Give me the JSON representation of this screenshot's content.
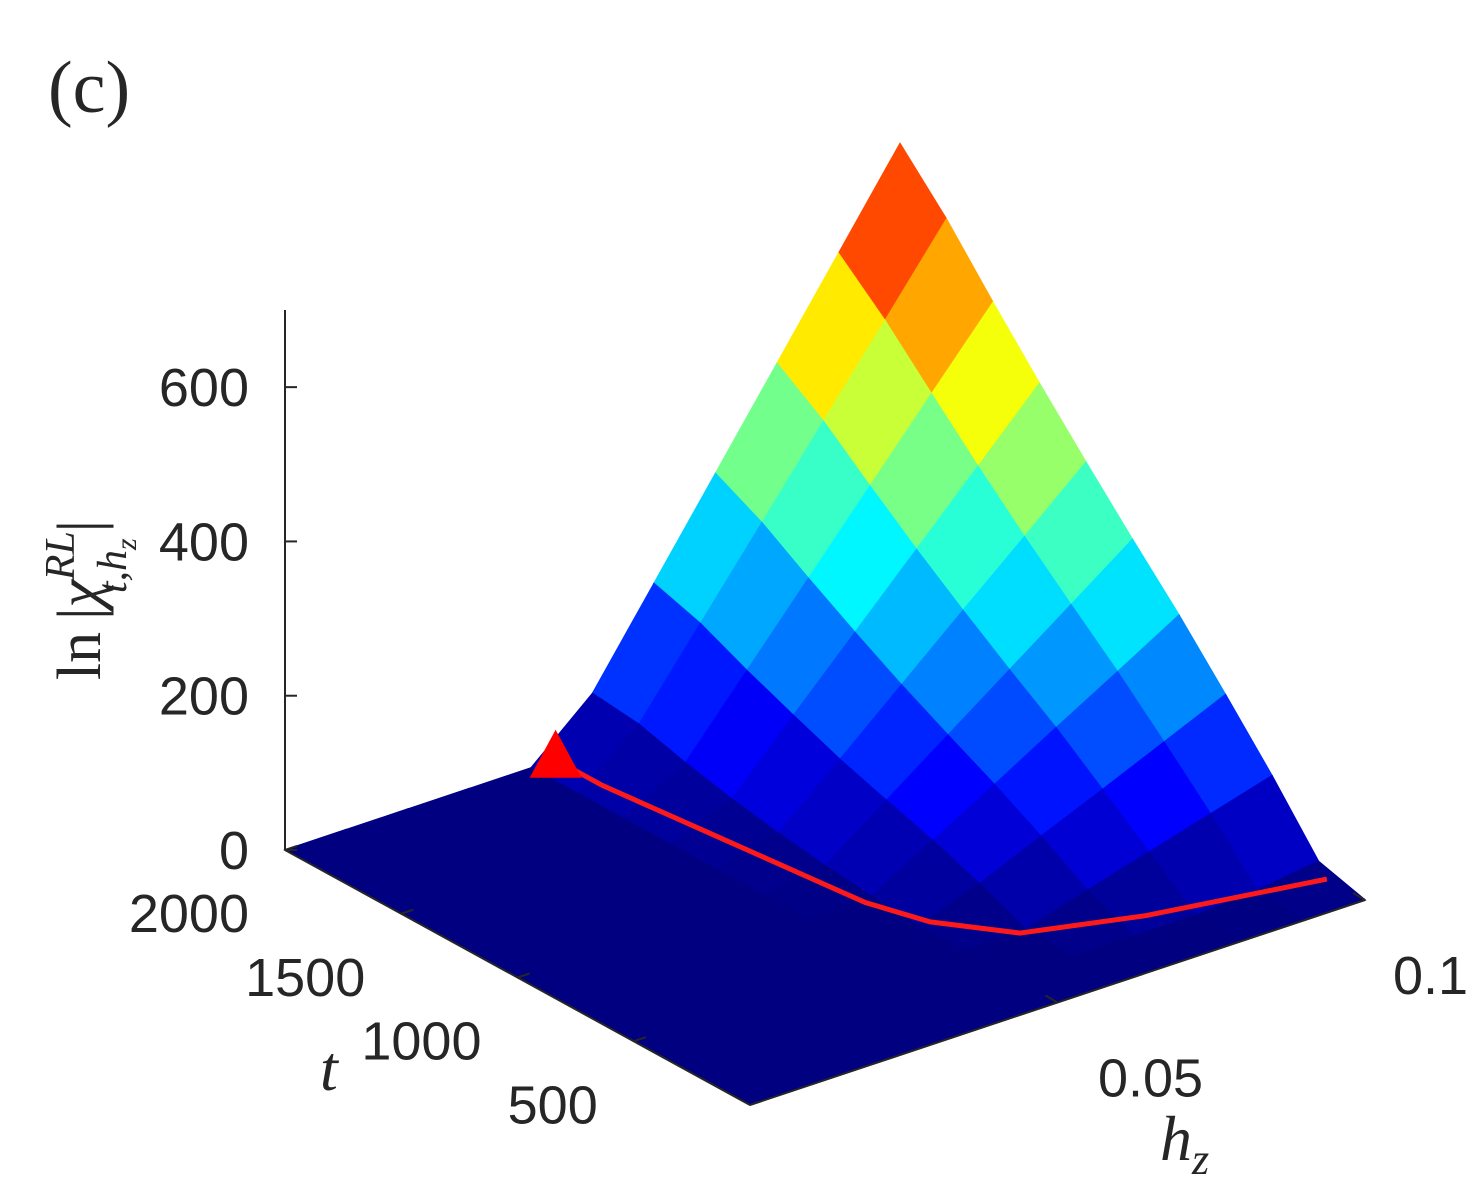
{
  "chart_data": {
    "type": "surface",
    "panel_label": "(c)",
    "zlabel": {
      "ln": "ln",
      "bar": "|",
      "chi": "χ",
      "sup": "RL",
      "sub": "t,h",
      "subsub": "z",
      "end": "|"
    },
    "xlabel": {
      "base": "h",
      "sub": "z"
    },
    "ylabel": "t",
    "xlim": [
      0,
      0.1
    ],
    "ylim": [
      0,
      2000
    ],
    "zlim": [
      0,
      700
    ],
    "xticks": [
      0.05,
      0.1
    ],
    "yticks": [
      500,
      1000,
      1500,
      2000
    ],
    "zticks": [
      0,
      200,
      400,
      600
    ],
    "colormap": "jet",
    "x": [
      0,
      0.01,
      0.02,
      0.03,
      0.04,
      0.05,
      0.06,
      0.07,
      0.08,
      0.09,
      0.1
    ],
    "y": [
      0,
      200,
      400,
      600,
      800,
      1000,
      1200,
      1400,
      1600,
      1800,
      2000
    ],
    "z": [
      [
        0,
        0,
        0,
        0,
        0,
        0,
        0,
        0,
        0,
        0,
        0
      ],
      [
        0,
        0,
        0,
        0,
        0,
        0,
        0,
        0,
        0,
        6,
        17
      ],
      [
        0,
        0,
        0,
        0,
        0,
        0,
        2,
        26,
        49,
        72,
        95
      ],
      [
        0,
        0,
        0,
        0,
        0,
        0,
        28,
        63,
        97,
        132,
        167
      ],
      [
        0,
        0,
        0,
        0,
        0,
        5,
        51,
        97,
        144,
        190,
        237
      ],
      [
        0,
        0,
        0,
        0,
        0,
        12,
        70,
        128,
        186,
        244,
        302
      ],
      [
        0,
        0,
        0,
        0,
        0,
        21,
        90,
        160,
        230,
        299,
        369
      ],
      [
        0,
        0,
        0,
        0,
        0,
        32,
        114,
        195,
        276,
        357,
        438
      ],
      [
        0,
        0,
        0,
        0,
        0,
        46,
        139,
        232,
        325,
        418,
        510
      ],
      [
        0,
        0,
        0,
        0,
        0,
        63,
        167,
        271,
        376,
        480,
        585
      ],
      [
        0,
        0,
        0,
        0,
        0,
        70,
        186,
        302,
        418,
        534,
        650
      ]
    ],
    "boundary": {
      "color": "#ff1a1a",
      "x": [
        0.044,
        0.044,
        0.045,
        0.046,
        0.047,
        0.048,
        0.049,
        0.052,
        0.059,
        0.075,
        0.1
      ],
      "y": [
        2000,
        1800,
        1600,
        1400,
        1200,
        1000,
        800,
        600,
        400,
        280,
        164
      ]
    },
    "marker": {
      "color": "#ff0000",
      "x": 0.044,
      "y": 2000
    }
  }
}
